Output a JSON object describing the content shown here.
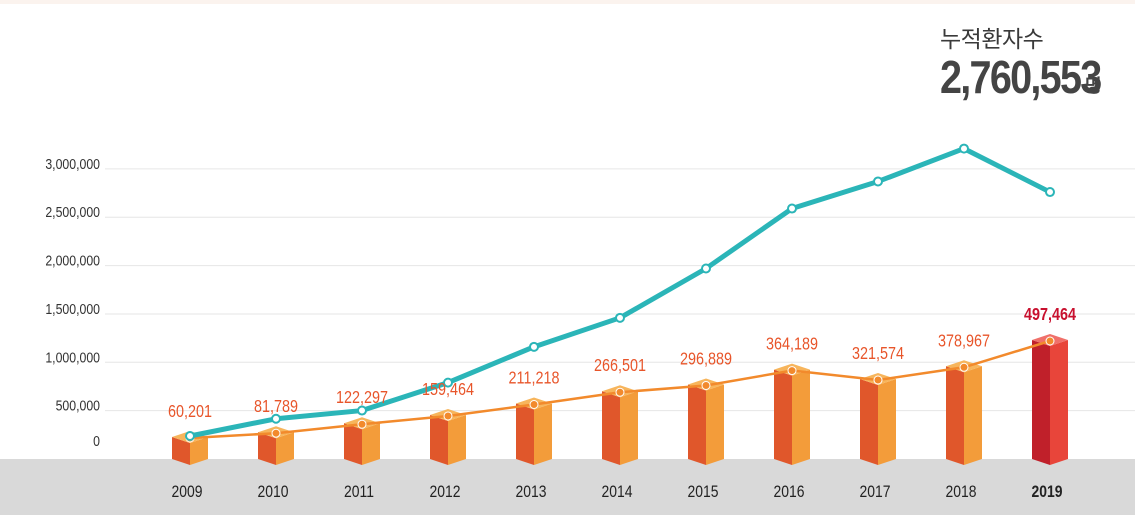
{
  "total": {
    "label": "누적환자수",
    "value": "2,760,553",
    "unit": "명"
  },
  "colors": {
    "line": "#2bb5b8",
    "bar_light": "#f39c3a",
    "bar_dark": "#e0572b",
    "bar_top": "#f7b55c",
    "bar_highlight_light": "#e8453a",
    "bar_highlight_dark": "#c0202a",
    "bar_highlight_top": "#f0706a",
    "trend_line": "#f28a2c",
    "value_label": "#e8552a",
    "value_label_highlight": "#c8102e",
    "axis_band": "#d9d9d9",
    "grid": "#e6e6e6"
  },
  "chart_data": {
    "type": "bar",
    "categories": [
      "2009",
      "2010",
      "2011",
      "2012",
      "2013",
      "2014",
      "2015",
      "2016",
      "2017",
      "2018",
      "2019"
    ],
    "y_ticks": [
      "3,000,000",
      "2,500,000",
      "2,000,000",
      "1,500,000",
      "1,000,000",
      "500,000",
      "0"
    ],
    "ylim": [
      0,
      3000000
    ],
    "grid": true,
    "highlight_category": "2019",
    "series": [
      {
        "type": "bar",
        "values": [
          60201,
          81789,
          122297,
          159464,
          211218,
          266501,
          296889,
          364189,
          321574,
          378967,
          497464
        ],
        "labels": [
          "60,201",
          "81,789",
          "122,297",
          "159,464",
          "211,218",
          "266,501",
          "296,889",
          "364,189",
          "321,574",
          "378,967",
          "497,464"
        ]
      },
      {
        "type": "line",
        "values": [
          60201,
          416000,
          501000,
          790000,
          1160000,
          1460000,
          1970000,
          2590000,
          2870000,
          3210000,
          2760553
        ]
      }
    ]
  }
}
